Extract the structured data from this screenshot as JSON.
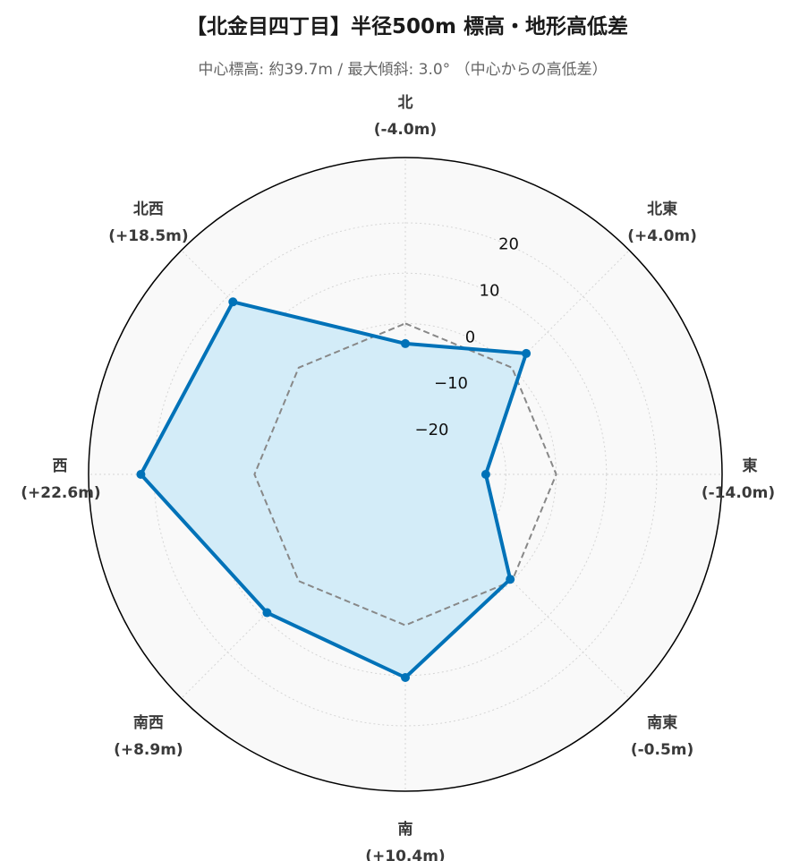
{
  "chart_data": {
    "type": "radar",
    "title": "【北金目四丁目】半径500m 標高・地形高低差",
    "subtitle": "中心標高: 約39.7m / 最大傾斜: 3.0° （中心からの高低差）",
    "categories": [
      "北",
      "北東",
      "東",
      "南東",
      "南",
      "南西",
      "西",
      "北西"
    ],
    "value_labels": [
      "(-4.0m)",
      "(+4.0m)",
      "(-14.0m)",
      "(-0.5m)",
      "(+10.4m)",
      "(+8.9m)",
      "(+22.6m)",
      "(+18.5m)"
    ],
    "series": [
      {
        "values": [
          -4.0,
          4.0,
          -14.0,
          -0.5,
          10.4,
          8.9,
          22.6,
          18.5
        ],
        "color": "#0072B8",
        "fill": "#D3ECF8",
        "markers": true
      },
      {
        "values": [
          0,
          0,
          0,
          0,
          0,
          0,
          0,
          0
        ],
        "color": "#888888",
        "style": "dashed"
      }
    ],
    "radial_range": [
      -30,
      33
    ],
    "radial_ticks": [
      -20,
      -10,
      0,
      10,
      20
    ],
    "radial_tick_labels": [
      "−20",
      "−10",
      "0",
      "10",
      "20"
    ],
    "grid": true,
    "direction": "clockwise",
    "start": "north",
    "background": "#F9F9F9",
    "gridline_color": "#D5D5D5"
  }
}
